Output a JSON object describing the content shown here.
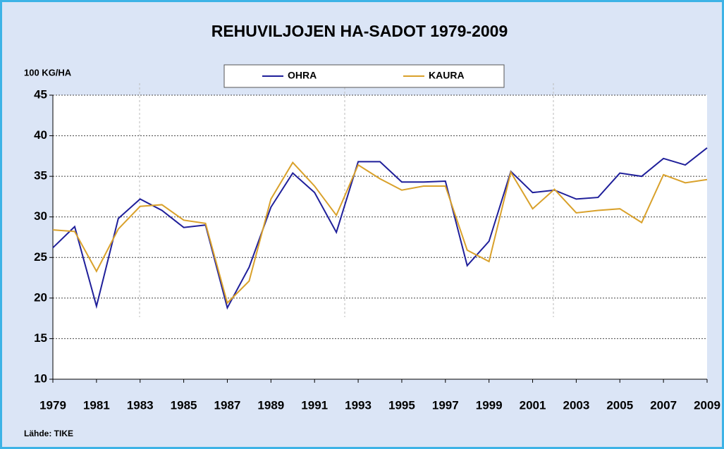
{
  "chart_data": {
    "type": "line",
    "title": "REHUVILJOJEN HA-SADOT 1979-2009",
    "y_axis_label": "100 KG/HA",
    "source": "Lähde: TIKE",
    "x": [
      1979,
      1980,
      1981,
      1982,
      1983,
      1984,
      1985,
      1986,
      1987,
      1988,
      1989,
      1990,
      1991,
      1992,
      1993,
      1994,
      1995,
      1996,
      1997,
      1998,
      1999,
      2000,
      2001,
      2002,
      2003,
      2004,
      2005,
      2006,
      2007,
      2008,
      2009
    ],
    "series": [
      {
        "name": "OHRA",
        "color": "#1f1f9a",
        "values": [
          26.2,
          28.8,
          19.0,
          29.8,
          32.2,
          30.8,
          28.7,
          29.0,
          18.8,
          23.8,
          31.2,
          35.4,
          33.0,
          28.1,
          36.8,
          36.8,
          34.3,
          34.3,
          34.4,
          24.0,
          27.0,
          35.6,
          33.0,
          33.3,
          32.2,
          32.4,
          35.4,
          35.0,
          37.2,
          36.4,
          38.5
        ]
      },
      {
        "name": "KAURA",
        "color": "#d9a12b",
        "values": [
          28.4,
          28.2,
          23.3,
          28.5,
          31.3,
          31.5,
          29.6,
          29.2,
          19.4,
          22.1,
          32.2,
          36.7,
          33.8,
          30.2,
          36.4,
          34.7,
          33.3,
          33.8,
          33.8,
          25.9,
          24.5,
          35.5,
          31.0,
          33.4,
          30.5,
          30.8,
          31.0,
          29.3,
          35.2,
          34.2,
          34.6
        ]
      }
    ],
    "xlim": [
      1979,
      2009
    ],
    "xticks": [
      1979,
      1981,
      1983,
      1985,
      1987,
      1989,
      1991,
      1993,
      1995,
      1997,
      1999,
      2001,
      2003,
      2005,
      2007,
      2009
    ],
    "ylim": [
      10,
      45
    ],
    "yticks": [
      10,
      15,
      20,
      25,
      30,
      35,
      40,
      45
    ],
    "grid": true
  }
}
